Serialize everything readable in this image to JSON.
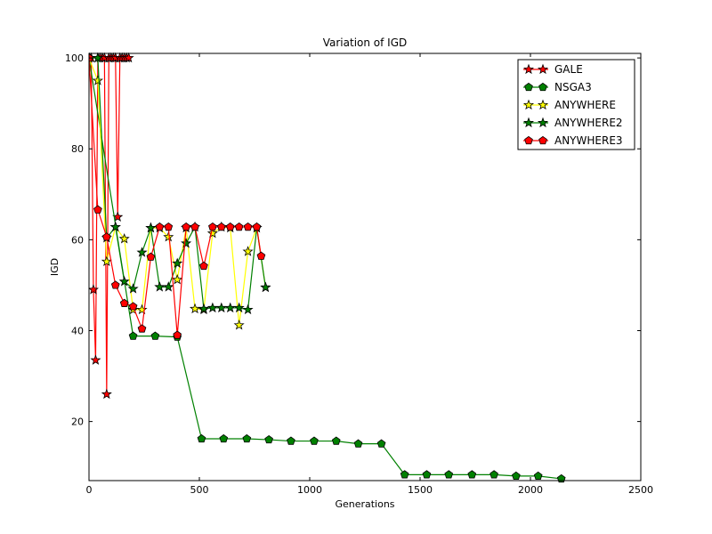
{
  "chart_data": {
    "type": "line",
    "title": "Variation of IGD",
    "xlabel": "Generations",
    "ylabel": "IGD",
    "xlim": [
      0,
      2500
    ],
    "ylim": [
      7,
      101
    ],
    "xticks": [
      0,
      500,
      1000,
      1500,
      2000,
      2500
    ],
    "yticks": [
      20,
      40,
      60,
      80,
      100
    ],
    "grid": false,
    "legend_position": "top-right",
    "series": [
      {
        "name": "GALE",
        "color": "#ff0000",
        "marker": "star",
        "marker_fill": "#ff0000",
        "x": [
          0,
          10,
          20,
          30,
          40,
          50,
          60,
          70,
          80,
          90,
          100,
          110,
          120,
          130,
          140,
          150,
          160,
          170,
          180
        ],
        "y": [
          100,
          100,
          49,
          33.5,
          100,
          100,
          100,
          100,
          26,
          100,
          100,
          100,
          100,
          65,
          100,
          100,
          100,
          100,
          100
        ]
      },
      {
        "name": "NSGA3",
        "color": "#008000",
        "marker": "pentagon",
        "marker_fill": "#008000",
        "x": [
          0,
          200,
          300,
          400,
          510,
          610,
          715,
          815,
          915,
          1020,
          1120,
          1220,
          1325,
          1430,
          1530,
          1630,
          1735,
          1835,
          1935,
          2035,
          2140
        ],
        "y": [
          100,
          38.8,
          38.8,
          38.6,
          16.2,
          16.2,
          16.2,
          16.0,
          15.7,
          15.7,
          15.7,
          15.1,
          15.1,
          8.3,
          8.3,
          8.3,
          8.3,
          8.3,
          8.0,
          8.0,
          7.4
        ]
      },
      {
        "name": "ANYWHERE",
        "color": "#ffff00",
        "marker": "star",
        "marker_fill": "#ffff00",
        "x": [
          0,
          40,
          80,
          120,
          160,
          200,
          240,
          280,
          320,
          360,
          400,
          440,
          480,
          520,
          560,
          600,
          640,
          680,
          720,
          760,
          800
        ],
        "y": [
          100,
          95,
          55.2,
          62.8,
          60.2,
          44.6,
          44.6,
          62.6,
          62.6,
          60.6,
          51.2,
          62.6,
          44.8,
          44.6,
          61.4,
          62.8,
          62.6,
          41.2,
          57.4,
          62.6,
          49.5
        ]
      },
      {
        "name": "ANYWHERE2",
        "color": "#008000",
        "marker": "star",
        "marker_fill": "#008000",
        "x": [
          0,
          40,
          80,
          120,
          160,
          200,
          240,
          280,
          320,
          360,
          400,
          440,
          480,
          520,
          560,
          600,
          640,
          680,
          720,
          760,
          800
        ],
        "y": [
          100,
          100,
          60.4,
          62.8,
          50.8,
          49.2,
          57.2,
          62.6,
          49.6,
          49.6,
          54.8,
          59.2,
          62.8,
          44.8,
          45.0,
          45.0,
          45.0,
          45.0,
          44.6,
          62.6,
          49.5
        ]
      },
      {
        "name": "ANYWHERE3",
        "color": "#ff0000",
        "marker": "pentagon",
        "marker_fill": "#ff0000",
        "x": [
          0,
          40,
          80,
          120,
          160,
          200,
          240,
          280,
          320,
          360,
          400,
          440,
          480,
          520,
          560,
          600,
          640,
          680,
          720,
          760,
          780
        ],
        "y": [
          100,
          66.6,
          60.6,
          50.0,
          46.0,
          45.3,
          40.4,
          56.2,
          62.8,
          62.8,
          39.0,
          62.8,
          62.8,
          54.2,
          62.8,
          62.8,
          62.8,
          62.8,
          62.8,
          62.8,
          56.4
        ]
      }
    ]
  }
}
